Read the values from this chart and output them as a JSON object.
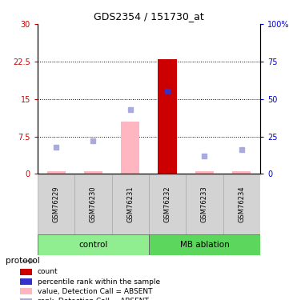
{
  "title": "GDS2354 / 151730_at",
  "samples": [
    "GSM76229",
    "GSM76230",
    "GSM76231",
    "GSM76232",
    "GSM76233",
    "GSM76234"
  ],
  "group_info": [
    {
      "label": "control",
      "start": 0,
      "end": 2,
      "color": "#90EE90"
    },
    {
      "label": "MB ablation",
      "start": 3,
      "end": 5,
      "color": "#5CD65C"
    }
  ],
  "ylim_left": [
    0,
    30
  ],
  "ylim_right": [
    0,
    100
  ],
  "yticks_left": [
    0,
    7.5,
    15,
    22.5,
    30
  ],
  "yticks_right": [
    0,
    25,
    50,
    75,
    100
  ],
  "yticklabels_right": [
    "0",
    "25",
    "50",
    "75",
    "100%"
  ],
  "bar_values": [
    0.5,
    0.5,
    10.5,
    23.0,
    0.5,
    0.5
  ],
  "bar_absent": [
    true,
    true,
    true,
    false,
    true,
    true
  ],
  "bar_color_present": "#CC0000",
  "bar_color_absent": "#FFB6C1",
  "bar_width": 0.5,
  "rank_values": [
    18.0,
    22.0,
    43.0,
    55.0,
    12.0,
    16.0
  ],
  "rank_absent": [
    true,
    true,
    true,
    false,
    true,
    true
  ],
  "rank_color_absent": "#AAAADD",
  "rank_color_present": "#3333CC",
  "left_axis_color": "#CC0000",
  "right_axis_color": "#0000CC",
  "grid_dotted_at": [
    7.5,
    15,
    22.5
  ],
  "bg_color": "#FFFFFF",
  "xlabel_box_color": "#D3D3D3",
  "xlabel_box_edge": "#AAAAAA",
  "legend_items": [
    {
      "color": "#CC0000",
      "label": "count"
    },
    {
      "color": "#3333CC",
      "label": "percentile rank within the sample"
    },
    {
      "color": "#FFB6C1",
      "label": "value, Detection Call = ABSENT"
    },
    {
      "color": "#AAAADD",
      "label": "rank, Detection Call = ABSENT"
    }
  ],
  "protocol_label": "protocol"
}
